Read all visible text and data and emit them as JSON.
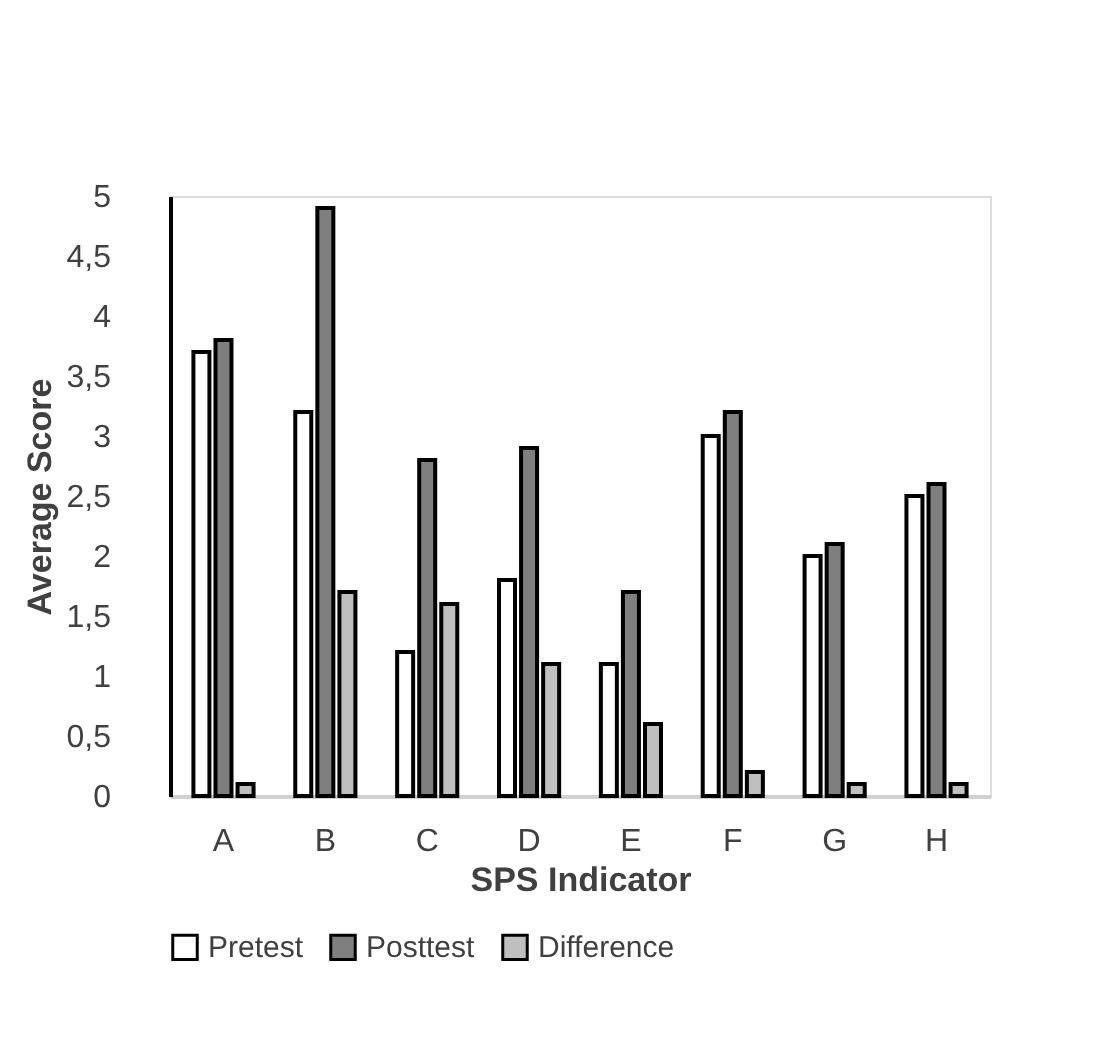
{
  "chart_data": {
    "type": "bar",
    "xlabel": "SPS Indicator",
    "ylabel": "Average Score",
    "categories": [
      "A",
      "B",
      "C",
      "D",
      "E",
      "F",
      "G",
      "H"
    ],
    "series": [
      {
        "name": "Pretest",
        "color": "#ffffff",
        "values": [
          3.7,
          3.2,
          1.2,
          1.8,
          1.1,
          3.0,
          2.0,
          2.5
        ]
      },
      {
        "name": "Posttest",
        "color": "#7f7f7f",
        "values": [
          3.8,
          4.9,
          2.8,
          2.9,
          1.7,
          3.2,
          2.1,
          2.6
        ]
      },
      {
        "name": "Difference",
        "color": "#bfbfbf",
        "values": [
          0.1,
          1.7,
          1.6,
          1.1,
          0.6,
          0.2,
          0.1,
          0.1
        ]
      }
    ],
    "ylim": [
      0,
      5
    ],
    "yticks": [
      0,
      {
        "value": 0.5,
        "label": "0,5"
      },
      1,
      {
        "value": 1.5,
        "label": "1,5"
      },
      2,
      {
        "value": 2.5,
        "label": "2,5"
      },
      3,
      {
        "value": 3.5,
        "label": "3,5"
      },
      4,
      {
        "value": 4.5,
        "label": "4,5"
      },
      5
    ],
    "grid": false,
    "legend": "bottom"
  }
}
